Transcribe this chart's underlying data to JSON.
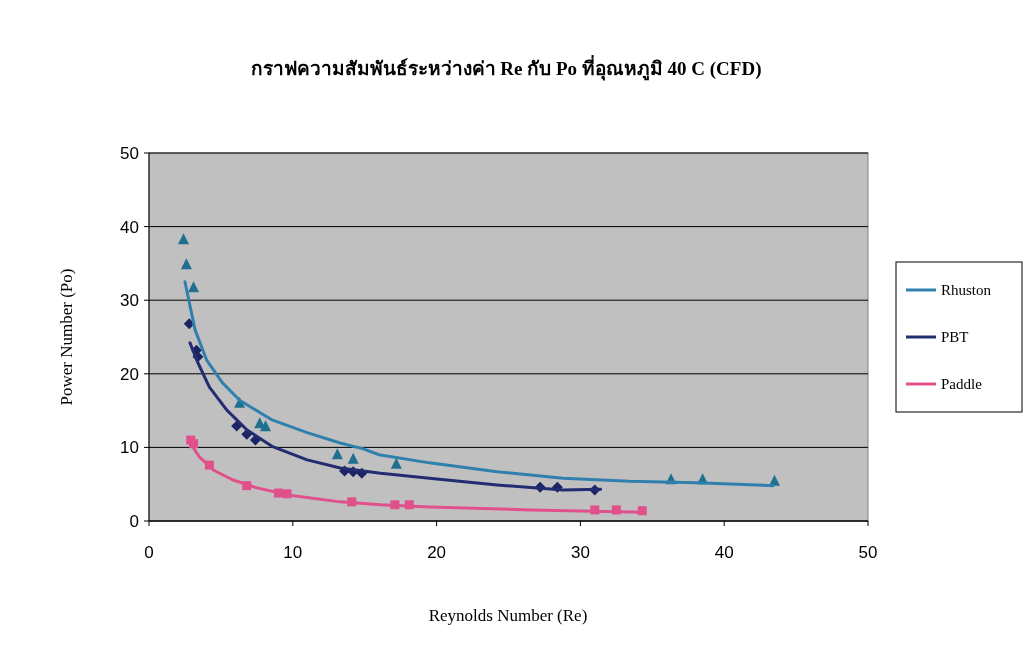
{
  "chart_data": {
    "type": "line",
    "title": "กราฟความสัมพันธ์ระหว่างค่า Re กับ Po ที่อุณหภูมิ 40 C (CFD)",
    "xlabel": "Reynolds Number (Re)",
    "ylabel": "Power Number (Po)",
    "xlim": [
      0,
      50
    ],
    "ylim": [
      0,
      50
    ],
    "xticks": [
      0,
      10,
      20,
      30,
      40,
      50
    ],
    "yticks": [
      0,
      10,
      20,
      30,
      40,
      50
    ],
    "grid": "y",
    "legend": "right",
    "series": [
      {
        "type": "scatter",
        "color": "#1f7090",
        "marker": "triangle",
        "x": [
          2.4,
          2.6,
          3.1,
          6.3,
          7.7,
          8.1,
          13.1,
          14.2,
          17.2,
          36.3,
          38.5,
          43.5
        ],
        "values": [
          38.2,
          34.8,
          31.7,
          16.0,
          13.2,
          12.8,
          9.0,
          8.4,
          7.7,
          5.6,
          5.6,
          5.4
        ]
      },
      {
        "type": "scatter",
        "color": "#1c2466",
        "marker": "diamond",
        "x": [
          2.8,
          3.3,
          3.4,
          6.1,
          6.8,
          7.4,
          13.6,
          14.2,
          14.8,
          27.2,
          28.4,
          31.0
        ],
        "values": [
          26.8,
          23.2,
          22.3,
          12.9,
          11.8,
          11.0,
          6.8,
          6.7,
          6.5,
          4.6,
          4.6,
          4.2
        ]
      },
      {
        "type": "scatter",
        "color": "#e0508a",
        "marker": "square",
        "x": [
          2.9,
          3.1,
          4.2,
          6.8,
          9.0,
          9.6,
          14.1,
          17.1,
          18.1,
          31.0,
          32.5,
          34.3
        ],
        "values": [
          11.0,
          10.5,
          7.6,
          4.8,
          3.8,
          3.7,
          2.6,
          2.2,
          2.2,
          1.5,
          1.5,
          1.4
        ]
      },
      {
        "type": "line",
        "name": "Rhuston",
        "color": "#2f80ad",
        "marker": "none",
        "x": [
          2.5,
          3.2,
          4.0,
          5.1,
          6.3,
          8.6,
          11,
          13.3,
          14.9,
          16,
          19.5,
          24.2,
          28.8,
          33.4,
          38.1,
          43.4
        ],
        "values": [
          32.5,
          26,
          21.9,
          18.8,
          16.4,
          13.7,
          12,
          10.6,
          9.8,
          9.0,
          7.9,
          6.7,
          5.8,
          5.4,
          5.2,
          4.8
        ]
      },
      {
        "type": "line",
        "name": "PBT",
        "color": "#232c70",
        "marker": "none",
        "x": [
          2.85,
          3.4,
          4.2,
          5.4,
          6.8,
          8.6,
          11,
          13.3,
          16.1,
          19.5,
          24.2,
          28.8,
          31.4
        ],
        "values": [
          24.2,
          21.5,
          18.2,
          15.1,
          12.4,
          10.1,
          8.3,
          7.2,
          6.5,
          5.8,
          4.9,
          4.2,
          4.3
        ]
      },
      {
        "type": "line",
        "name": "Paddle",
        "color": "#e0508a",
        "marker": "none",
        "x": [
          2.85,
          3.5,
          4.5,
          5.8,
          7.5,
          9.8,
          13.3,
          16.1,
          19.5,
          26.5,
          34.4
        ],
        "values": [
          10.7,
          8.7,
          6.9,
          5.6,
          4.5,
          3.5,
          2.6,
          2.2,
          1.9,
          1.5,
          1.2
        ]
      }
    ]
  }
}
